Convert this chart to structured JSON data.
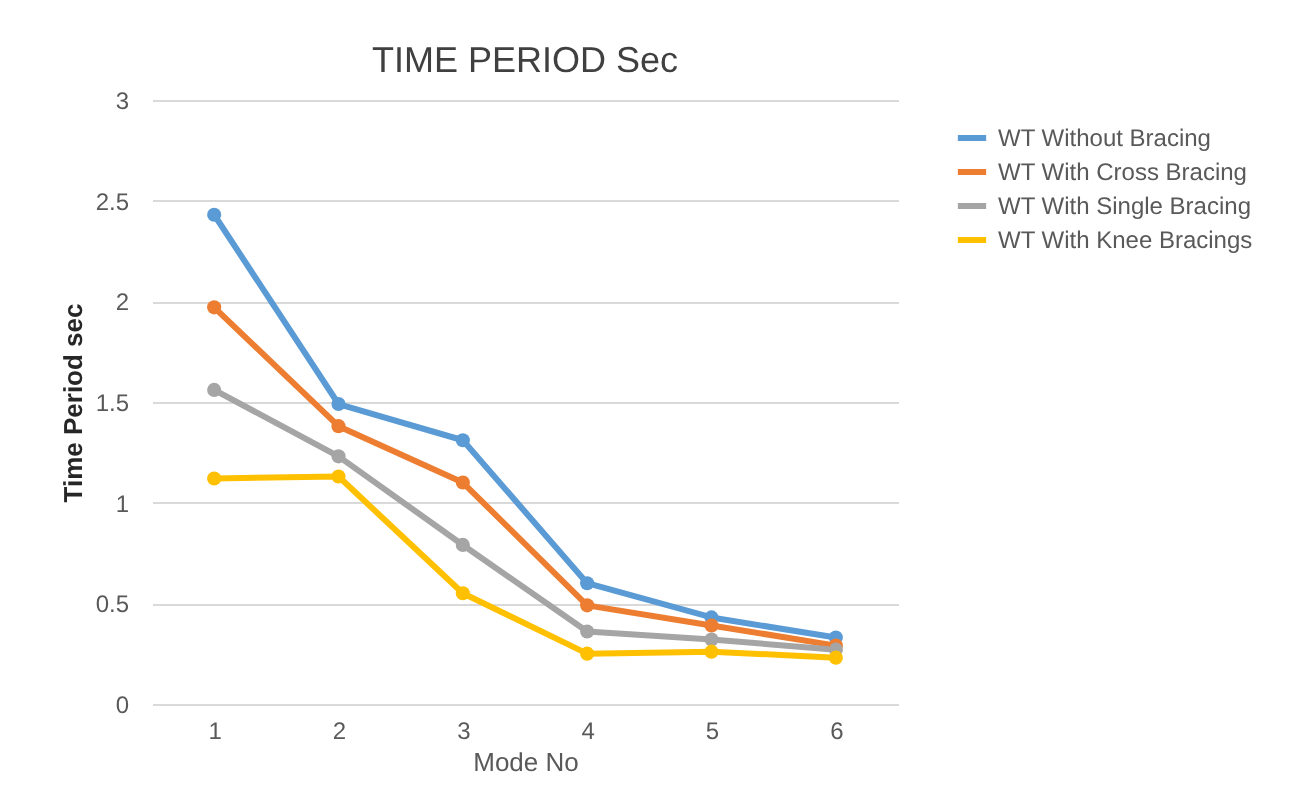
{
  "chart_data": {
    "type": "line",
    "title": "TIME PERIOD Sec",
    "xlabel": "Mode No",
    "ylabel": "Time Period  sec",
    "categories": [
      "1",
      "2",
      "3",
      "4",
      "5",
      "6"
    ],
    "series": [
      {
        "name": "WT Without Bracing",
        "color": "#5b9bd5",
        "values": [
          2.43,
          1.49,
          1.31,
          0.6,
          0.43,
          0.33
        ]
      },
      {
        "name": "WT With Cross Bracing",
        "color": "#ed7d31",
        "values": [
          1.97,
          1.38,
          1.1,
          0.49,
          0.39,
          0.29
        ]
      },
      {
        "name": "WT With Single Bracing",
        "color": "#a5a5a5",
        "values": [
          1.56,
          1.23,
          0.79,
          0.36,
          0.32,
          0.27
        ]
      },
      {
        "name": "WT With Knee Bracings",
        "color": "#ffc000",
        "values": [
          1.12,
          1.13,
          0.55,
          0.25,
          0.26,
          0.23
        ]
      }
    ],
    "ylim": [
      0,
      3
    ],
    "yticks": [
      0,
      0.5,
      1,
      1.5,
      2,
      2.5,
      3
    ],
    "grid": "y",
    "legend": "right",
    "marker": "circle",
    "line_style": "solid"
  }
}
